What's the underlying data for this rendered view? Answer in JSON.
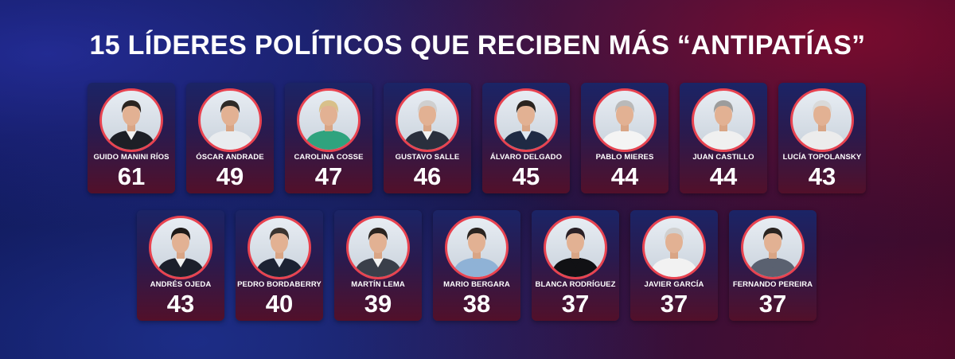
{
  "title": "15 LÍDERES POLÍTICOS QUE RECIBEN MÁS “ANTIPATÍAS”",
  "colors": {
    "ring": "#e84350",
    "text": "#ffffff"
  },
  "row1": [
    {
      "name": "GUIDO MANINI RÍOS",
      "value": "61",
      "hair": "#2a2420",
      "suit": "#1d1f26",
      "shirt": "#f2f2f2"
    },
    {
      "name": "ÓSCAR ANDRADE",
      "value": "49",
      "hair": "#2e2a27",
      "suit": "#e9ecef",
      "shirt": "#e9ecef"
    },
    {
      "name": "CAROLINA COSSE",
      "value": "47",
      "hair": "#d8c08a",
      "suit": "#2fa37e",
      "shirt": "#2fa37e"
    },
    {
      "name": "GUSTAVO SALLE",
      "value": "46",
      "hair": "#cfcfcf",
      "suit": "#2a2f3d",
      "shirt": "#f2f2f2"
    },
    {
      "name": "ÁLVARO DELGADO",
      "value": "45",
      "hair": "#2a2420",
      "suit": "#1f2a44",
      "shirt": "#dfe7f1"
    },
    {
      "name": "PABLO MIERES",
      "value": "44",
      "hair": "#b9b9b9",
      "suit": "#f4f4f4",
      "shirt": "#f4f4f4"
    },
    {
      "name": "JUAN CASTILLO",
      "value": "44",
      "hair": "#9c9c9c",
      "suit": "#f0f0f0",
      "shirt": "#f0f0f0"
    },
    {
      "name": "LUCÍA TOPOLANSKY",
      "value": "43",
      "hair": "#d9d9d9",
      "suit": "#ececec",
      "shirt": "#ececec"
    }
  ],
  "row2": [
    {
      "name": "ANDRÉS OJEDA",
      "value": "43",
      "hair": "#1e1a18",
      "suit": "#1c1f2b",
      "shirt": "#f2f2f2"
    },
    {
      "name": "PEDRO BORDABERRY",
      "value": "40",
      "hair": "#3a3430",
      "suit": "#1c2233",
      "shirt": "#dfe6ef"
    },
    {
      "name": "MARTÍN LEMA",
      "value": "39",
      "hair": "#2a2420",
      "suit": "#3a3f4a",
      "shirt": "#f2f2f2"
    },
    {
      "name": "MARIO BERGARA",
      "value": "38",
      "hair": "#2a2420",
      "suit": "#8fb2d6",
      "shirt": "#8fb2d6"
    },
    {
      "name": "BLANCA RODRÍGUEZ",
      "value": "37",
      "hair": "#2a2026",
      "suit": "#111114",
      "shirt": "#111114"
    },
    {
      "name": "JAVIER GARCÍA",
      "value": "37",
      "hair": "#d0d0d0",
      "suit": "#f2f2f2",
      "shirt": "#f2f2f2"
    },
    {
      "name": "FERNANDO PEREIRA",
      "value": "37",
      "hair": "#2a2420",
      "suit": "#5a6170",
      "shirt": "#5a6170"
    }
  ]
}
